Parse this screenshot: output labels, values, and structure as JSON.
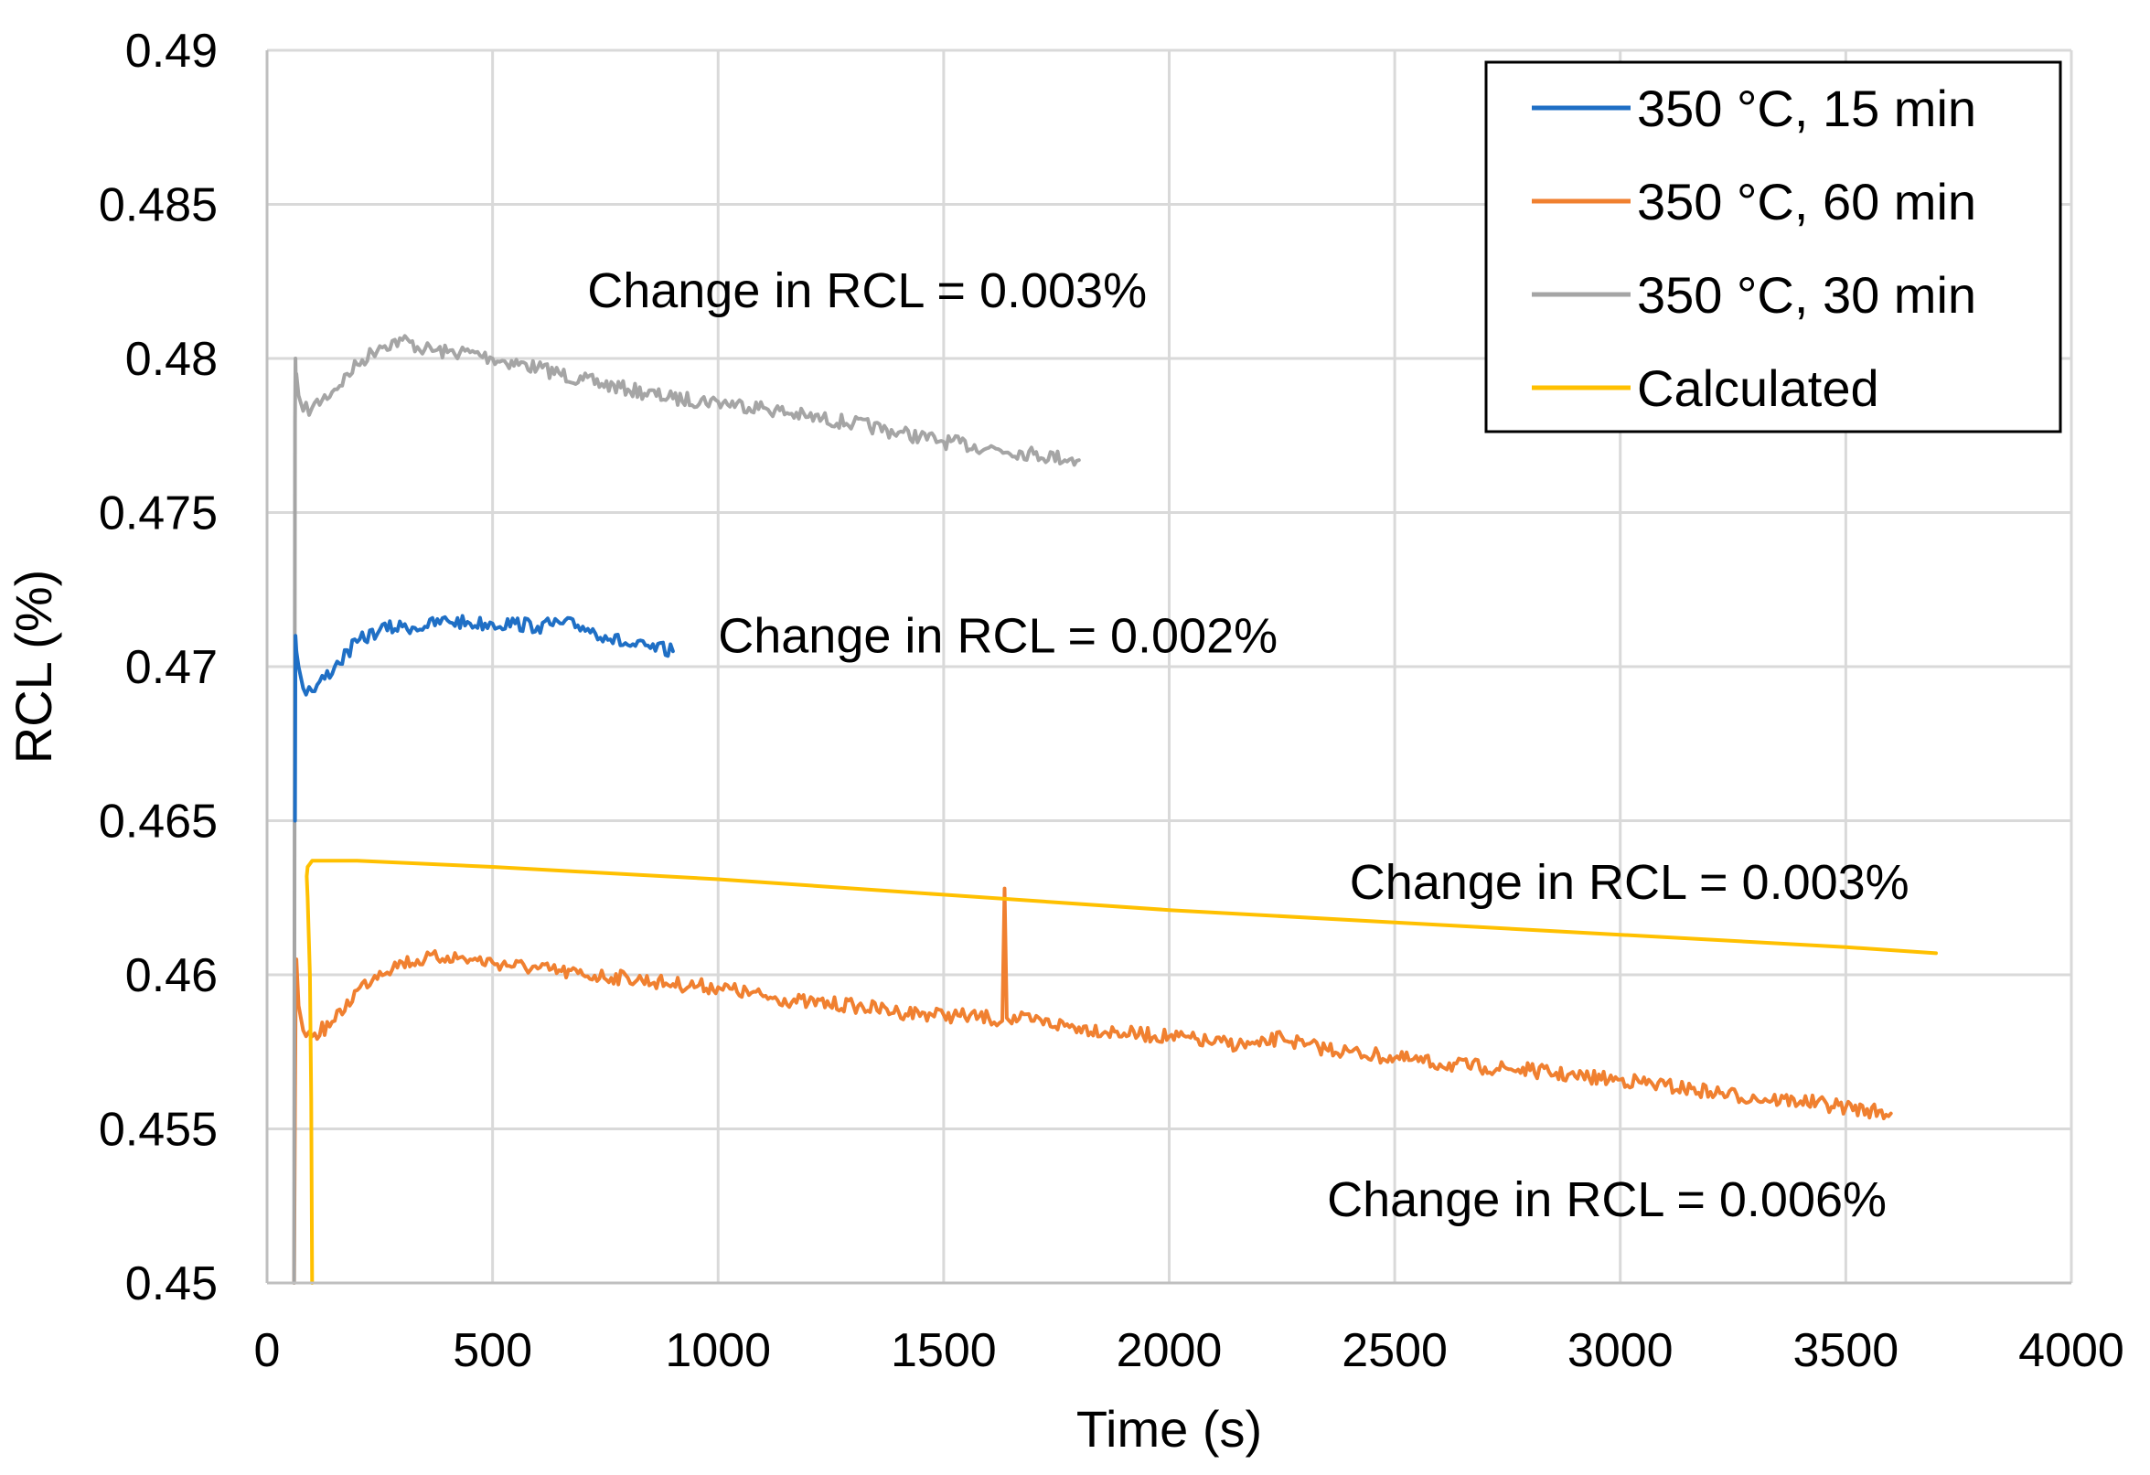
{
  "chart_data": {
    "type": "line",
    "title": "",
    "xlabel": "Time (s)",
    "ylabel": "RCL (%)",
    "xlim": [
      0,
      4000
    ],
    "ylim": [
      0.45,
      0.49
    ],
    "x_ticks": [
      "0",
      "500",
      "1000",
      "1500",
      "2000",
      "2500",
      "3000",
      "3500",
      "4000"
    ],
    "y_ticks": [
      "0.45",
      "0.455",
      "0.46",
      "0.465",
      "0.47",
      "0.475",
      "0.48",
      "0.485",
      "0.49"
    ],
    "x_tick_values": [
      0,
      500,
      1000,
      1500,
      2000,
      2500,
      3000,
      3500,
      4000
    ],
    "y_tick_values": [
      0.45,
      0.455,
      0.46,
      0.465,
      0.47,
      0.475,
      0.48,
      0.485,
      0.49
    ],
    "grid": true,
    "legend_position": "top-right",
    "series": [
      {
        "name": "350 °C, 15 min",
        "color": "#1f6fc5",
        "x": [
          65,
          70,
          80,
          100,
          150,
          200,
          250,
          300,
          350,
          400,
          450,
          500,
          550,
          600,
          650,
          700,
          750,
          800,
          850,
          900
        ],
        "y": [
          0.4705,
          0.47,
          0.4693,
          0.4692,
          0.47,
          0.4708,
          0.4712,
          0.4713,
          0.4713,
          0.4715,
          0.4714,
          0.4714,
          0.4714,
          0.4713,
          0.4714,
          0.4713,
          0.471,
          0.4707,
          0.4706,
          0.4705
        ]
      },
      {
        "name": "350 °C, 60 min",
        "color": "#f08030",
        "x": [
          65,
          70,
          80,
          100,
          150,
          200,
          250,
          300,
          350,
          400,
          450,
          500,
          600,
          700,
          800,
          900,
          1000,
          1100,
          1200,
          1300,
          1400,
          1500,
          1600,
          1630,
          1635,
          1640,
          1700,
          1800,
          1900,
          2000,
          2100,
          2200,
          2250,
          2300,
          2400,
          2500,
          2600,
          2700,
          2800,
          2900,
          3000,
          3100,
          3200,
          3300,
          3400,
          3500,
          3600
        ],
        "y": [
          0.4605,
          0.459,
          0.4582,
          0.458,
          0.4585,
          0.4595,
          0.4601,
          0.4604,
          0.4605,
          0.4606,
          0.4605,
          0.4604,
          0.4602,
          0.46,
          0.4599,
          0.4597,
          0.4596,
          0.4593,
          0.4591,
          0.459,
          0.4588,
          0.4587,
          0.4586,
          0.4585,
          0.4628,
          0.4586,
          0.4585,
          0.4583,
          0.4581,
          0.458,
          0.4578,
          0.4577,
          0.458,
          0.4577,
          0.4575,
          0.4573,
          0.4571,
          0.457,
          0.4569,
          0.4567,
          0.4566,
          0.4564,
          0.4562,
          0.456,
          0.4559,
          0.4557,
          0.4555
        ]
      },
      {
        "name": "350 °C, 30 min",
        "color": "#a5a5a5",
        "x": [
          65,
          70,
          80,
          100,
          150,
          200,
          250,
          300,
          350,
          400,
          450,
          500,
          600,
          700,
          800,
          900,
          1000,
          1100,
          1200,
          1300,
          1400,
          1500,
          1600,
          1700,
          1800
        ],
        "y": [
          0.4795,
          0.4788,
          0.4783,
          0.4784,
          0.479,
          0.4798,
          0.4804,
          0.4806,
          0.4803,
          0.4802,
          0.4802,
          0.48,
          0.4797,
          0.4793,
          0.479,
          0.4787,
          0.4786,
          0.4784,
          0.4781,
          0.4779,
          0.4776,
          0.4773,
          0.4771,
          0.4769,
          0.4767
        ]
      },
      {
        "name": "Calculated",
        "color": "#ffc000",
        "x": [
          100,
          98,
          95,
          90,
          88,
          90,
          95,
          100,
          110,
          150,
          200,
          500,
          1000,
          1500,
          2000,
          2500,
          3000,
          3500,
          3700
        ],
        "y": [
          0.45,
          0.456,
          0.46,
          0.4625,
          0.4632,
          0.4635,
          0.4636,
          0.4637,
          0.4637,
          0.4637,
          0.4637,
          0.4635,
          0.4631,
          0.4626,
          0.4621,
          0.4617,
          0.4613,
          0.4609,
          0.4607
        ]
      }
    ],
    "spikes": [
      {
        "series": "350 °C, 60 min",
        "x": [
          60,
          62,
          64,
          66
        ],
        "y": [
          0.45,
          0.456,
          0.4605,
          0.459
        ]
      },
      {
        "series": "350 °C, 30 min",
        "x": [
          60,
          62,
          63,
          64
        ],
        "y": [
          0.45,
          0.478,
          0.48,
          0.479
        ]
      },
      {
        "series": "350 °C, 15 min",
        "x": [
          62,
          63,
          65
        ],
        "y": [
          0.465,
          0.471,
          0.4705
        ]
      }
    ],
    "annotations": [
      {
        "text": "Change in RCL = 0.003%",
        "x": 710,
        "y": 0.4822
      },
      {
        "text": "Change in RCL = 0.002%",
        "x": 1000,
        "y": 0.471
      },
      {
        "text": "Change in RCL = 0.003%",
        "x": 2400,
        "y": 0.463
      },
      {
        "text": "Change in RCL = 0.006%",
        "x": 2350,
        "y": 0.4527
      }
    ]
  }
}
